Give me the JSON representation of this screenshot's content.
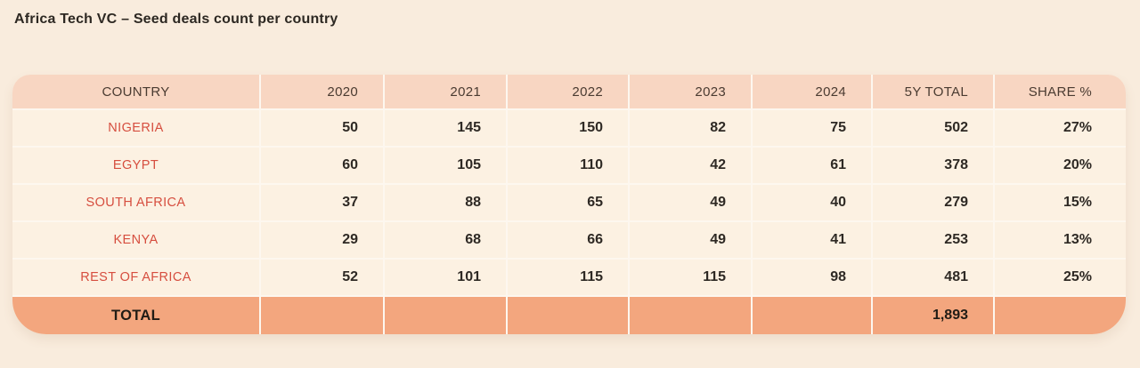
{
  "page": {
    "title": "Africa Tech VC – Seed deals count per country",
    "background": "#f9ecdd"
  },
  "colors": {
    "header_bg": "#f8d6c2",
    "row_bg": "#fcf1e2",
    "total_row_bg": "#f3a67e",
    "divider": "#fdf7ef",
    "country_text": "#d64e3f",
    "value_text": "#2e2924",
    "title_text": "#2d2822"
  },
  "table": {
    "columns": [
      "COUNTRY",
      "2020",
      "2021",
      "2022",
      "2023",
      "2024",
      "5Y TOTAL",
      "SHARE %"
    ],
    "rows": [
      {
        "country": "NIGERIA",
        "values": [
          "50",
          "145",
          "150",
          "82",
          "75",
          "502",
          "27%"
        ]
      },
      {
        "country": "EGYPT",
        "values": [
          "60",
          "105",
          "110",
          "42",
          "61",
          "378",
          "20%"
        ]
      },
      {
        "country": "SOUTH AFRICA",
        "values": [
          "37",
          "88",
          "65",
          "49",
          "40",
          "279",
          "15%"
        ]
      },
      {
        "country": "KENYA",
        "values": [
          "29",
          "68",
          "66",
          "49",
          "41",
          "253",
          "13%"
        ]
      },
      {
        "country": "REST OF AFRICA",
        "values": [
          "52",
          "101",
          "115",
          "115",
          "98",
          "481",
          "25%"
        ]
      }
    ],
    "total_row": {
      "label": "TOTAL",
      "values": [
        "",
        "",
        "",
        "",
        "",
        "1,893",
        ""
      ]
    }
  },
  "chart_data": {
    "type": "table",
    "title": "Africa Tech VC – Seed deals count per country",
    "columns": [
      "COUNTRY",
      "2020",
      "2021",
      "2022",
      "2023",
      "2024",
      "5Y TOTAL",
      "SHARE %"
    ],
    "rows": [
      [
        "NIGERIA",
        50,
        145,
        150,
        82,
        75,
        502,
        "27%"
      ],
      [
        "EGYPT",
        60,
        105,
        110,
        42,
        61,
        378,
        "20%"
      ],
      [
        "SOUTH AFRICA",
        37,
        88,
        65,
        49,
        40,
        279,
        "15%"
      ],
      [
        "KENYA",
        29,
        68,
        66,
        49,
        41,
        253,
        "13%"
      ],
      [
        "REST OF AFRICA",
        52,
        101,
        115,
        115,
        98,
        481,
        "25%"
      ]
    ],
    "total": {
      "label": "TOTAL",
      "five_year_total": "1,893"
    }
  }
}
